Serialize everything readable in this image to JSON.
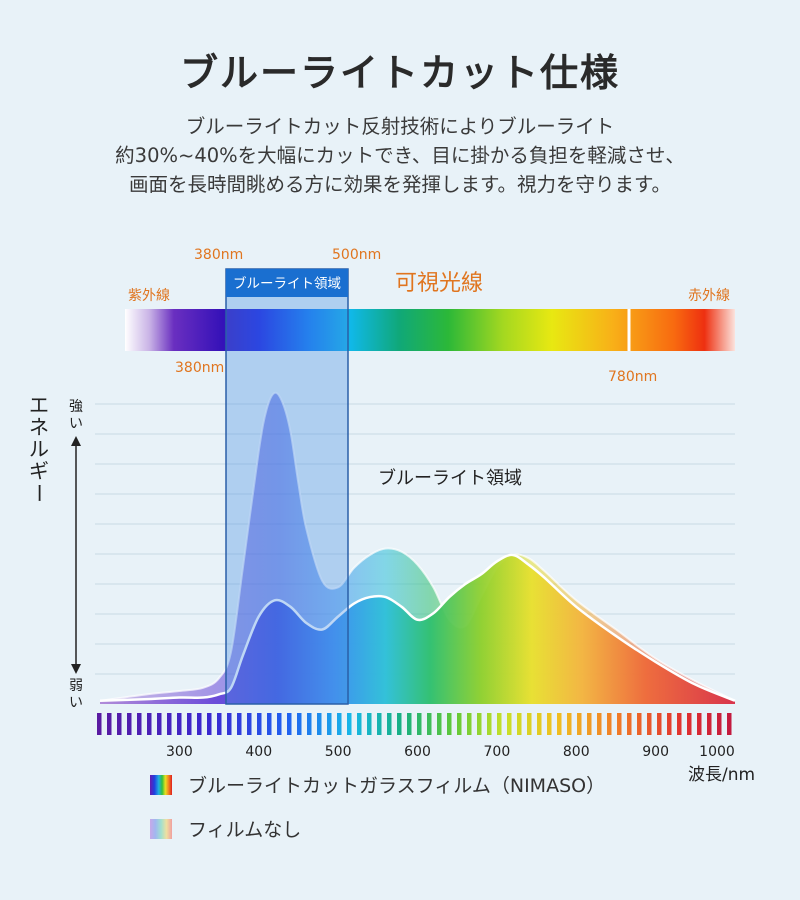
{
  "header": {
    "title": "ブルーライトカット仕様",
    "lines": [
      "ブルーライトカット反射技術によりブルーライト",
      "約30%~40%を大幅にカットでき、目に掛かる負担を軽減させ、",
      "画面を長時間眺める方に効果を発揮します。視力を守ります。"
    ]
  },
  "spectrum": {
    "visible_label": "可視光線",
    "uv_label": "紫外線",
    "ir_label": "赤外線",
    "blue_region_label": "ブルーライト領域",
    "top_start_label": "380nm",
    "top_end_label": "500nm",
    "bottom_start_label": "380nm",
    "bottom_end_label": "780nm"
  },
  "chart_data": {
    "type": "area",
    "ylabel": "エネルギー",
    "y_high_label": "強い",
    "y_low_label": "弱い",
    "xlabel": "波長/nm",
    "x_ticks": [
      300,
      400,
      500,
      600,
      700,
      800,
      900,
      1000
    ],
    "xlim": [
      200,
      1000
    ],
    "ylim": [
      0,
      1
    ],
    "region_label": "ブルーライト領域",
    "blue_region": [
      360,
      520
    ],
    "series": [
      {
        "name": "フィルムなし",
        "x": [
          200,
          260,
          300,
          330,
          350,
          365,
          380,
          400,
          410,
          420,
          430,
          440,
          450,
          460,
          480,
          500,
          520,
          540,
          560,
          580,
          600,
          620,
          640,
          660,
          680,
          700,
          720,
          740,
          760,
          800,
          850,
          900,
          950,
          1000
        ],
        "y": [
          0.01,
          0.03,
          0.04,
          0.05,
          0.08,
          0.16,
          0.42,
          0.78,
          0.91,
          0.96,
          0.93,
          0.84,
          0.68,
          0.54,
          0.38,
          0.36,
          0.42,
          0.46,
          0.48,
          0.47,
          0.43,
          0.36,
          0.26,
          0.24,
          0.33,
          0.42,
          0.46,
          0.45,
          0.41,
          0.32,
          0.23,
          0.14,
          0.07,
          0.01
        ]
      },
      {
        "name": "ブルーライトカットガラスフィルム（NIMASO）",
        "x": [
          200,
          260,
          300,
          330,
          350,
          365,
          380,
          400,
          420,
          440,
          460,
          480,
          500,
          520,
          540,
          560,
          580,
          600,
          620,
          640,
          660,
          680,
          700,
          720,
          740,
          760,
          800,
          850,
          900,
          950,
          1000
        ],
        "y": [
          0.01,
          0.015,
          0.02,
          0.02,
          0.03,
          0.05,
          0.15,
          0.27,
          0.32,
          0.3,
          0.25,
          0.23,
          0.27,
          0.31,
          0.33,
          0.33,
          0.3,
          0.26,
          0.28,
          0.33,
          0.37,
          0.4,
          0.44,
          0.46,
          0.43,
          0.39,
          0.3,
          0.21,
          0.13,
          0.06,
          0.01
        ]
      }
    ],
    "legend_placement": "bottom-left"
  },
  "legend": {
    "items": [
      {
        "label": "ブルーライトカットガラスフィルム（NIMASO）"
      },
      {
        "label": "フィルムなし"
      }
    ]
  },
  "colors": {
    "accent_orange": "#e0751f",
    "blue_region_fill": "#4a90e2",
    "blue_region_header": "#1a6fd0",
    "text_dark": "#333333"
  }
}
